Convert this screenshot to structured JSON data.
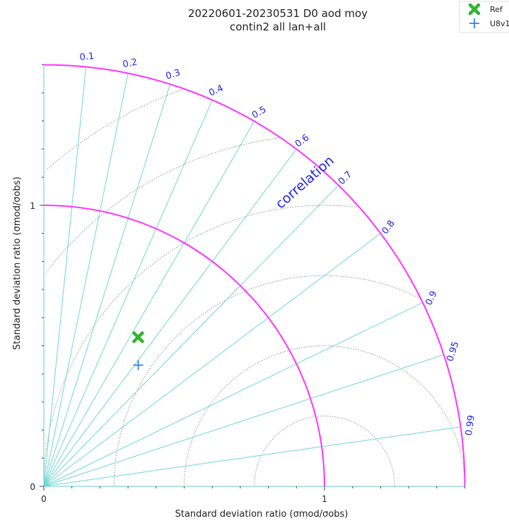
{
  "chart_data": {
    "type": "scatter",
    "title_lines": [
      "20220601-20230531 D0 aod moy",
      "contin2 all lan+all"
    ],
    "xlabel": "Standard deviation ratio (σmod/σobs)",
    "ylabel": "Standard deviation ratio (σmod/σobs)",
    "x_ticks": [
      "0",
      "1"
    ],
    "y_ticks": [
      "0",
      "1"
    ],
    "std_range": [
      0,
      1.5
    ],
    "reference_std": 1,
    "correlation_label": "correlation",
    "correlation_ticks": [
      "0.1",
      "0.2",
      "0.3",
      "0.4",
      "0.5",
      "0.6",
      "0.7",
      "0.8",
      "0.9",
      "0.95",
      "0.99"
    ],
    "correlation_values": [
      0.1,
      0.2,
      0.3,
      0.4,
      0.5,
      0.6,
      0.7,
      0.8,
      0.9,
      0.95,
      0.99
    ],
    "rms_contours": [
      0.25,
      0.5,
      0.75,
      1.0,
      1.25,
      1.5
    ],
    "legend_position": "top-right",
    "series": [
      {
        "name": "Ref",
        "marker": "X",
        "color": "#2db52d",
        "std": 0.628,
        "corr": 0.535
      },
      {
        "name": "U8v1",
        "marker": "+",
        "color": "#1f77e8",
        "std": 0.547,
        "corr": 0.615
      }
    ],
    "colors": {
      "arc": "#ff33ff",
      "corr_line": "#6fd6d6",
      "corr_text": "#2222ee",
      "rms": "#888888",
      "axis": "#66cccc"
    }
  }
}
